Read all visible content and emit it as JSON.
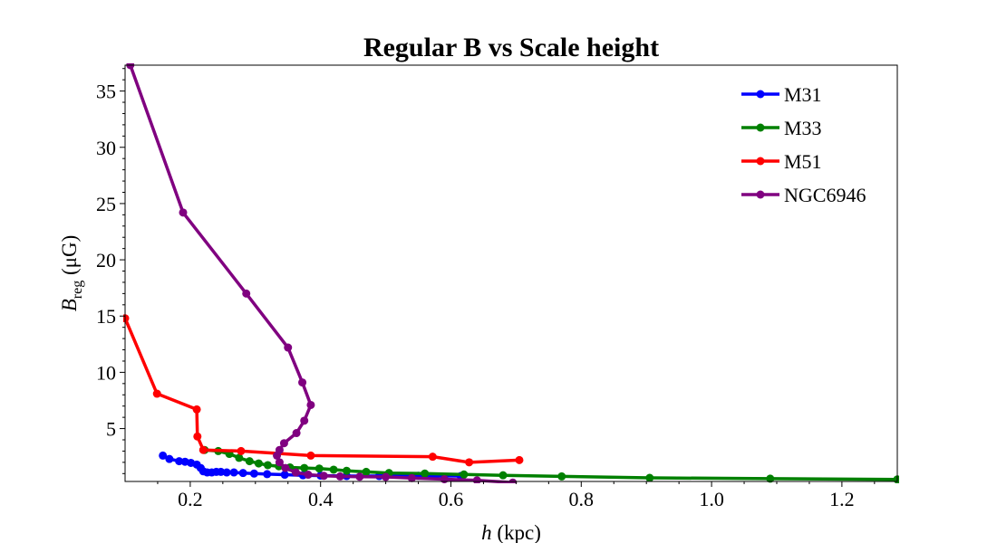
{
  "chart_data": {
    "type": "line",
    "title": "Regular B vs Scale height",
    "xlabel_main": "h",
    "xlabel_unit": " (kpc)",
    "ylabel_main": "B",
    "ylabel_sub": "reg",
    "ylabel_unit": " (μG)",
    "xlim": [
      0.1,
      1.285
    ],
    "ylim": [
      0.3,
      37.3
    ],
    "xticks": [
      0.2,
      0.4,
      0.6,
      0.8,
      1.0,
      1.2
    ],
    "xtick_labels": [
      "0.2",
      "0.4",
      "0.6",
      "0.8",
      "1.0",
      "1.2"
    ],
    "yticks": [
      5,
      10,
      15,
      20,
      25,
      30,
      35
    ],
    "ytick_labels": [
      "5",
      "10",
      "15",
      "20",
      "25",
      "30",
      "35"
    ],
    "legend_position": "top-right",
    "series": [
      {
        "name": "M31",
        "color": "#0000ff",
        "x": [
          0.158,
          0.168,
          0.183,
          0.192,
          0.201,
          0.21,
          0.216,
          0.22,
          0.226,
          0.233,
          0.24,
          0.247,
          0.256,
          0.267,
          0.281,
          0.298,
          0.318,
          0.345,
          0.373,
          0.4,
          0.44,
          0.49,
          0.55,
          0.615
        ],
        "y": [
          2.6,
          2.3,
          2.1,
          2.05,
          1.95,
          1.8,
          1.5,
          1.2,
          1.1,
          1.1,
          1.15,
          1.15,
          1.1,
          1.1,
          1.05,
          1.0,
          0.95,
          0.9,
          0.85,
          0.82,
          0.78,
          0.78,
          0.8,
          0.78
        ]
      },
      {
        "name": "M33",
        "color": "#008000",
        "x": [
          0.222,
          0.243,
          0.26,
          0.275,
          0.291,
          0.305,
          0.319,
          0.336,
          0.353,
          0.375,
          0.398,
          0.42,
          0.44,
          0.47,
          0.505,
          0.56,
          0.62,
          0.68,
          0.77,
          0.905,
          1.09,
          1.285
        ],
        "y": [
          3.1,
          3.0,
          2.75,
          2.4,
          2.1,
          1.9,
          1.75,
          1.65,
          1.55,
          1.5,
          1.45,
          1.35,
          1.25,
          1.15,
          1.05,
          1.0,
          0.92,
          0.85,
          0.75,
          0.62,
          0.55,
          0.48
        ]
      },
      {
        "name": "M51",
        "color": "#ff0000",
        "x": [
          0.1,
          0.149,
          0.21,
          0.211,
          0.22,
          0.278,
          0.385,
          0.572,
          0.628,
          0.705
        ],
        "y": [
          14.8,
          8.1,
          6.7,
          4.3,
          3.1,
          3.0,
          2.6,
          2.5,
          2.0,
          2.2
        ]
      },
      {
        "name": "NGC6946",
        "color": "#800080",
        "x": [
          0.108,
          0.189,
          0.286,
          0.35,
          0.372,
          0.385,
          0.375,
          0.363,
          0.344,
          0.337,
          0.333,
          0.337,
          0.346,
          0.362,
          0.381,
          0.405,
          0.43,
          0.46,
          0.5,
          0.54,
          0.59,
          0.64,
          0.695
        ],
        "y": [
          37.3,
          24.2,
          17.0,
          12.2,
          9.1,
          7.1,
          5.7,
          4.6,
          3.7,
          3.1,
          2.6,
          2.0,
          1.5,
          1.1,
          0.9,
          0.8,
          0.75,
          0.72,
          0.7,
          0.6,
          0.5,
          0.4,
          0.2
        ]
      }
    ]
  }
}
